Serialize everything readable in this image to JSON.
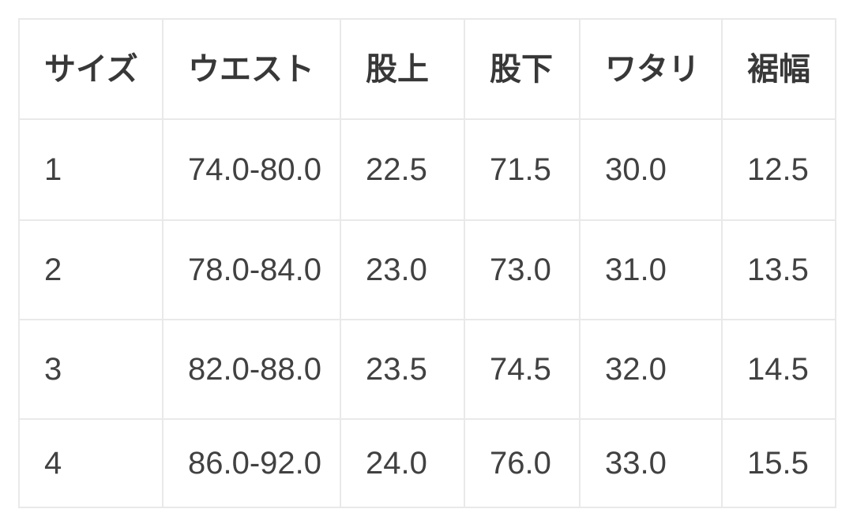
{
  "size_chart": {
    "columns": [
      {
        "key": "size",
        "label": "サイズ"
      },
      {
        "key": "waist",
        "label": "ウエスト"
      },
      {
        "key": "rise",
        "label": "股上"
      },
      {
        "key": "inseam",
        "label": "股下"
      },
      {
        "key": "thigh",
        "label": "ワタリ"
      },
      {
        "key": "hem",
        "label": "裾幅"
      }
    ],
    "rows": [
      {
        "cells": [
          "1",
          "74.0-80.0",
          "22.5",
          "71.5",
          "30.0",
          "12.5"
        ]
      },
      {
        "cells": [
          "2",
          "78.0-84.0",
          "23.0",
          "73.0",
          "31.0",
          "13.5"
        ]
      },
      {
        "cells": [
          "3",
          "82.0-88.0",
          "23.5",
          "74.5",
          "32.0",
          "14.5"
        ]
      },
      {
        "cells": [
          "4",
          "86.0-92.0",
          "24.0",
          "76.0",
          "33.0",
          "15.5"
        ]
      }
    ]
  },
  "colors": {
    "border": "#e9e9e9",
    "header_text": "#383838",
    "body_text": "#414141",
    "cell_background": "#ffffff",
    "page_background": "#ffffff"
  }
}
